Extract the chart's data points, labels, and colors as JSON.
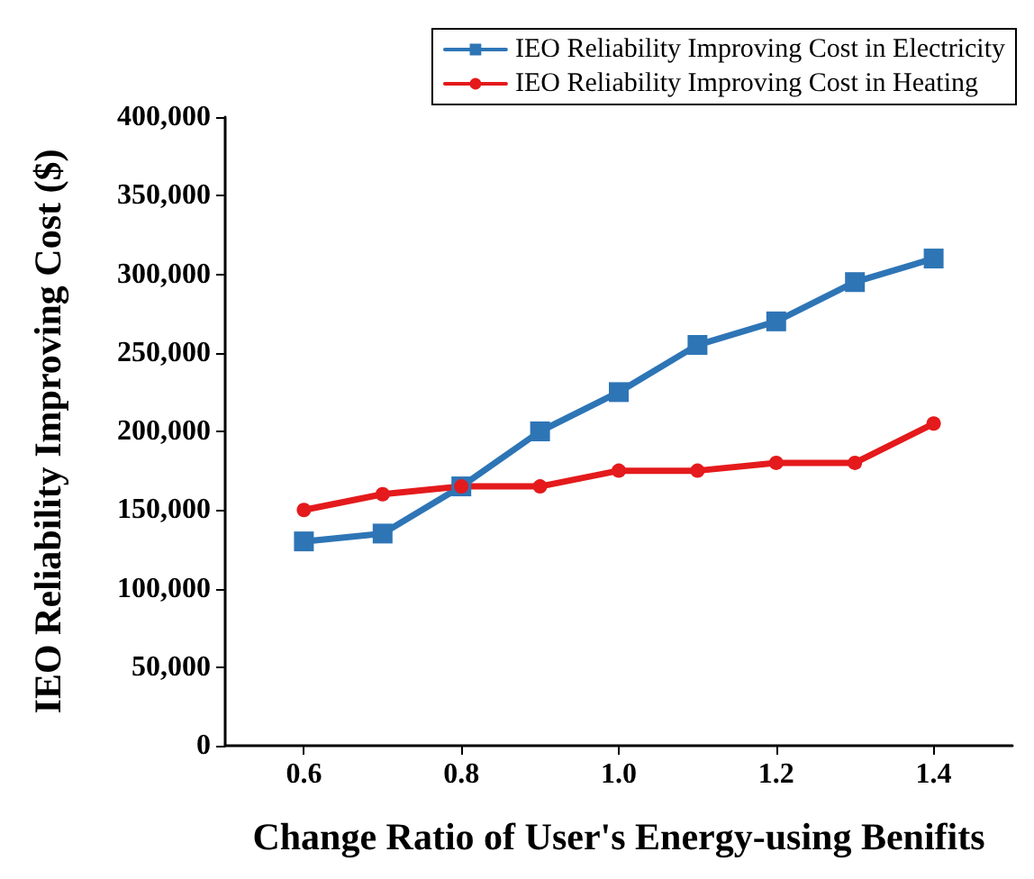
{
  "chart_data": {
    "type": "line",
    "xlabel": "Change Ratio of User's Energy-using Benifits",
    "ylabel": "IEO Reliability Improving Cost ($)",
    "x": [
      0.6,
      0.7,
      0.8,
      0.9,
      1.0,
      1.1,
      1.2,
      1.3,
      1.4
    ],
    "series": [
      {
        "name": "IEO Reliability Improving Cost in Electricity",
        "color": "#2e75b6",
        "marker": "square",
        "values": [
          130000,
          135000,
          165000,
          200000,
          225000,
          255000,
          270000,
          295000,
          310000
        ]
      },
      {
        "name": "IEO Reliability Improving Cost in Heating",
        "color": "#e41a1c",
        "marker": "circle",
        "values": [
          150000,
          160000,
          165000,
          165000,
          175000,
          175000,
          180000,
          180000,
          205000
        ]
      }
    ],
    "xlim": [
      0.5,
      1.5
    ],
    "xticks": [
      {
        "value": 0.6,
        "label": "0.6"
      },
      {
        "value": 0.8,
        "label": "0.8"
      },
      {
        "value": 1,
        "label": "1.0"
      },
      {
        "value": 1.2,
        "label": "1.2"
      },
      {
        "value": 1.4,
        "label": "1.4"
      }
    ],
    "ylim": [
      0,
      400000
    ],
    "yticks": [
      {
        "value": 0,
        "label": "0"
      },
      {
        "value": 50000,
        "label": "50,000"
      },
      {
        "value": 100000,
        "label": "100,000"
      },
      {
        "value": 150000,
        "label": "150,000"
      },
      {
        "value": 200000,
        "label": "200,000"
      },
      {
        "value": 250000,
        "label": "250,000"
      },
      {
        "value": 300000,
        "label": "300,000"
      },
      {
        "value": 350000,
        "label": "350,000"
      },
      {
        "value": 400000,
        "label": "400,000"
      }
    ],
    "grid": false,
    "legend": "top right",
    "line_style": "solid"
  }
}
